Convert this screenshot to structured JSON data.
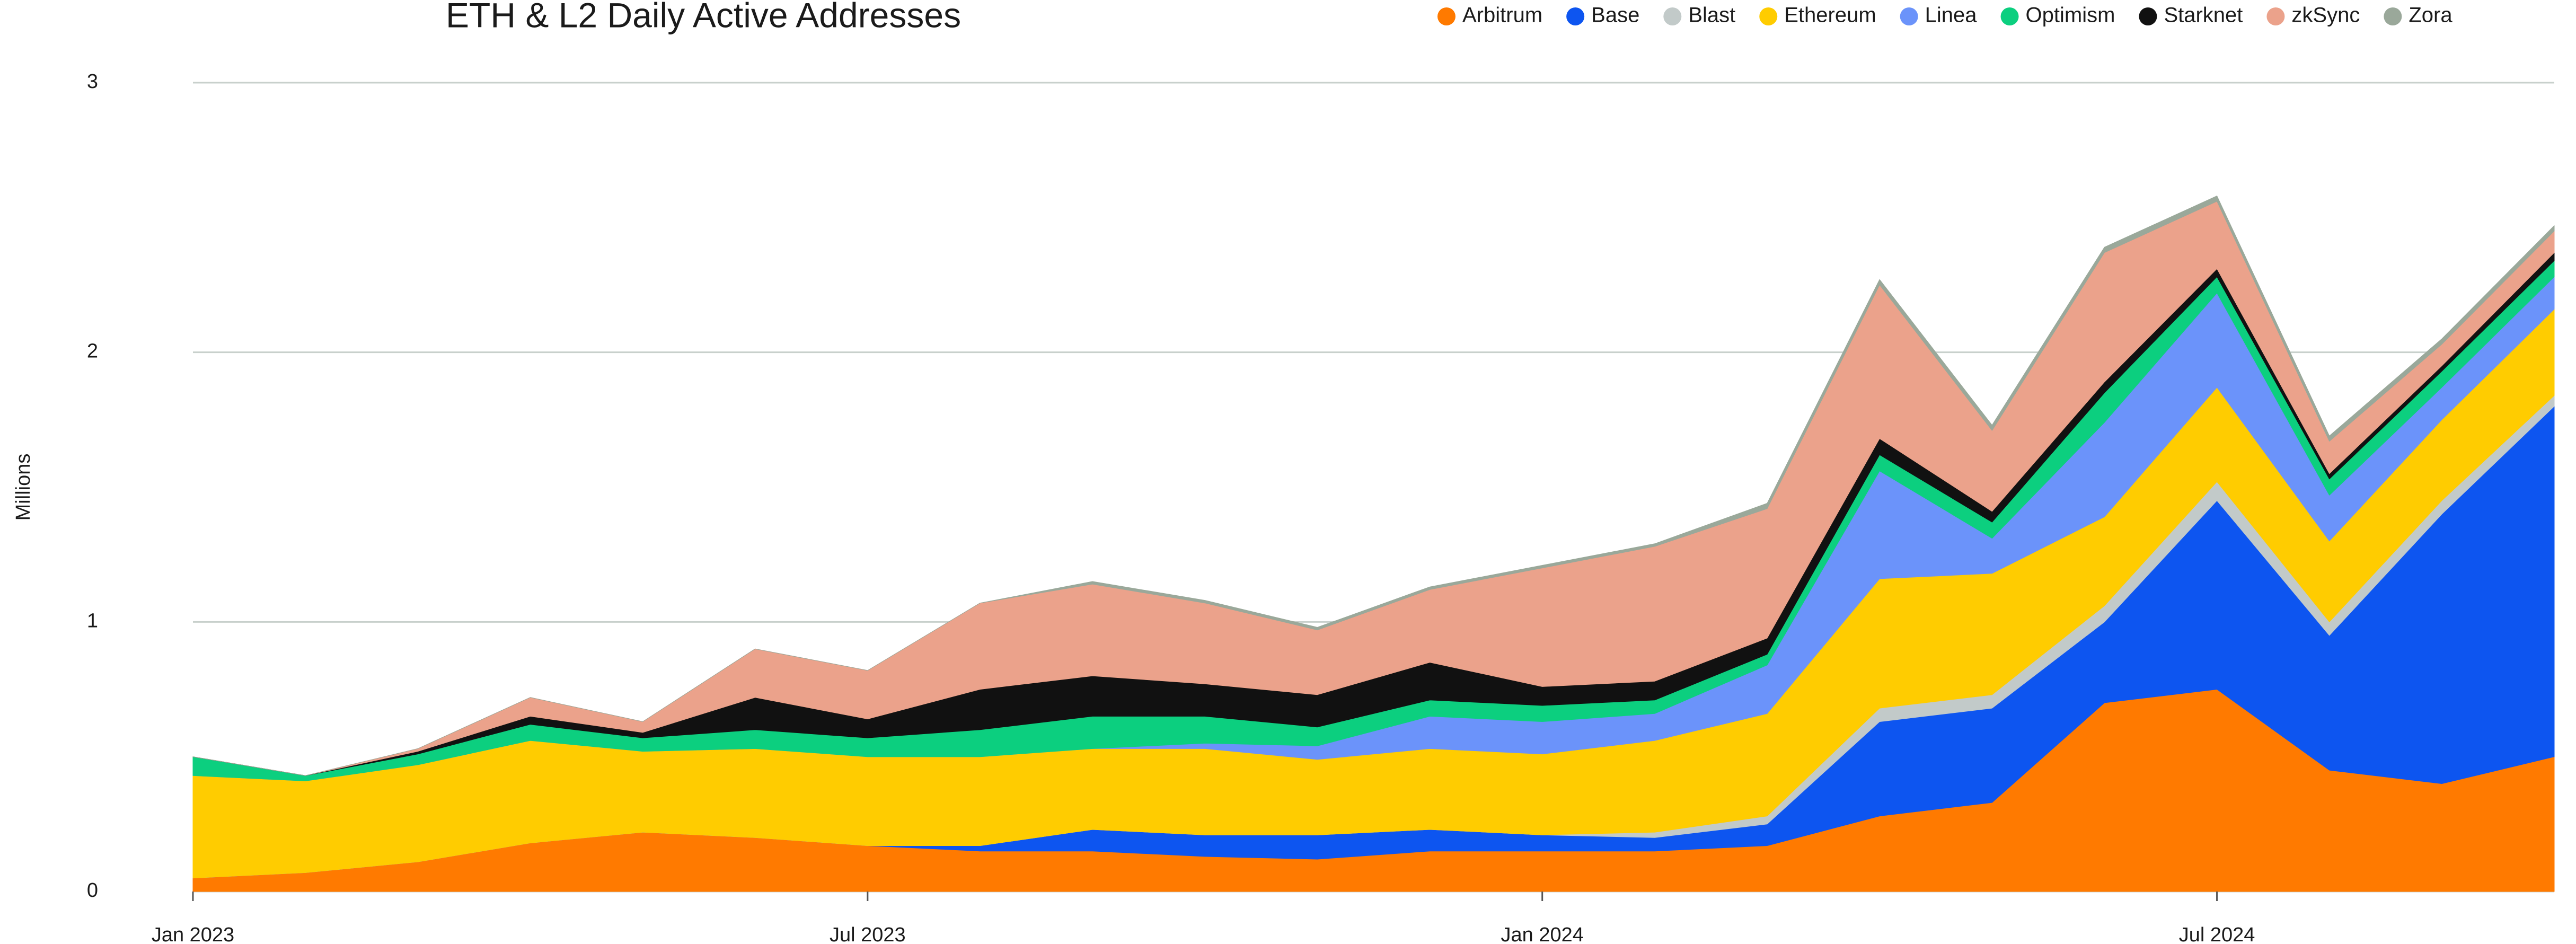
{
  "chart_data": {
    "type": "stacked_area",
    "title": "ETH & L2 Daily Active Addresses",
    "ylabel": "Millions",
    "x": [
      "2023-01",
      "2023-02",
      "2023-03",
      "2023-04",
      "2023-05",
      "2023-06",
      "2023-07",
      "2023-08",
      "2023-09",
      "2023-10",
      "2023-11",
      "2023-12",
      "2024-01",
      "2024-02",
      "2024-03",
      "2024-04",
      "2024-05",
      "2024-06",
      "2024-07",
      "2024-08",
      "2024-09",
      "2024-10"
    ],
    "xticks": [
      {
        "value": "2023-01",
        "label": "Jan 2023"
      },
      {
        "value": "2023-07",
        "label": "Jul 2023"
      },
      {
        "value": "2024-01",
        "label": "Jan 2024"
      },
      {
        "value": "2024-07",
        "label": "Jul 2024"
      }
    ],
    "ylim": [
      0,
      3
    ],
    "yticks": [
      0,
      1,
      2,
      3
    ],
    "grid": true,
    "legend": "top-right",
    "series": [
      {
        "name": "Arbitrum",
        "color": "#ff7a00",
        "values": [
          0.05,
          0.07,
          0.11,
          0.18,
          0.22,
          0.2,
          0.17,
          0.15,
          0.15,
          0.13,
          0.12,
          0.15,
          0.15,
          0.15,
          0.17,
          0.28,
          0.33,
          0.7,
          0.75,
          0.45,
          0.4,
          0.5
        ]
      },
      {
        "name": "Base",
        "color": "#0d55f0",
        "values": [
          0,
          0,
          0,
          0,
          0,
          0,
          0,
          0.02,
          0.08,
          0.08,
          0.09,
          0.08,
          0.06,
          0.05,
          0.08,
          0.35,
          0.35,
          0.3,
          0.7,
          0.5,
          1.0,
          1.3
        ]
      },
      {
        "name": "Blast",
        "color": "#c2cac9",
        "values": [
          0,
          0,
          0,
          0,
          0,
          0,
          0,
          0,
          0,
          0,
          0,
          0,
          0,
          0.02,
          0.03,
          0.05,
          0.05,
          0.06,
          0.07,
          0.05,
          0.05,
          0.04
        ]
      },
      {
        "name": "Ethereum",
        "color": "#ffcc00",
        "values": [
          0.38,
          0.34,
          0.36,
          0.38,
          0.3,
          0.33,
          0.33,
          0.33,
          0.3,
          0.32,
          0.28,
          0.3,
          0.3,
          0.34,
          0.38,
          0.48,
          0.45,
          0.33,
          0.35,
          0.3,
          0.3,
          0.32
        ]
      },
      {
        "name": "Linea",
        "color": "#6b93fa",
        "values": [
          0,
          0,
          0,
          0,
          0,
          0,
          0,
          0,
          0,
          0.02,
          0.05,
          0.12,
          0.12,
          0.1,
          0.18,
          0.4,
          0.13,
          0.35,
          0.35,
          0.17,
          0.12,
          0.12
        ]
      },
      {
        "name": "Optimism",
        "color": "#0ccf7f",
        "values": [
          0.07,
          0.02,
          0.04,
          0.06,
          0.05,
          0.07,
          0.07,
          0.1,
          0.12,
          0.1,
          0.07,
          0.06,
          0.06,
          0.05,
          0.04,
          0.06,
          0.06,
          0.11,
          0.06,
          0.06,
          0.06,
          0.06
        ]
      },
      {
        "name": "Starknet",
        "color": "#111111",
        "values": [
          0,
          0,
          0.01,
          0.03,
          0.02,
          0.12,
          0.07,
          0.15,
          0.15,
          0.12,
          0.12,
          0.14,
          0.07,
          0.07,
          0.06,
          0.06,
          0.04,
          0.04,
          0.03,
          0.02,
          0.02,
          0.03
        ]
      },
      {
        "name": "zkSync",
        "color": "#eba28b",
        "values": [
          0,
          0,
          0.01,
          0.07,
          0.04,
          0.18,
          0.18,
          0.32,
          0.34,
          0.3,
          0.24,
          0.27,
          0.44,
          0.5,
          0.48,
          0.57,
          0.3,
          0.48,
          0.25,
          0.12,
          0.08,
          0.08
        ]
      },
      {
        "name": "Zora",
        "color": "#9aa89a",
        "values": [
          0,
          0,
          0,
          0,
          0,
          0,
          0,
          0,
          0.01,
          0.01,
          0.01,
          0.01,
          0.01,
          0.01,
          0.02,
          0.02,
          0.02,
          0.02,
          0.02,
          0.02,
          0.02,
          0.02
        ]
      }
    ]
  }
}
